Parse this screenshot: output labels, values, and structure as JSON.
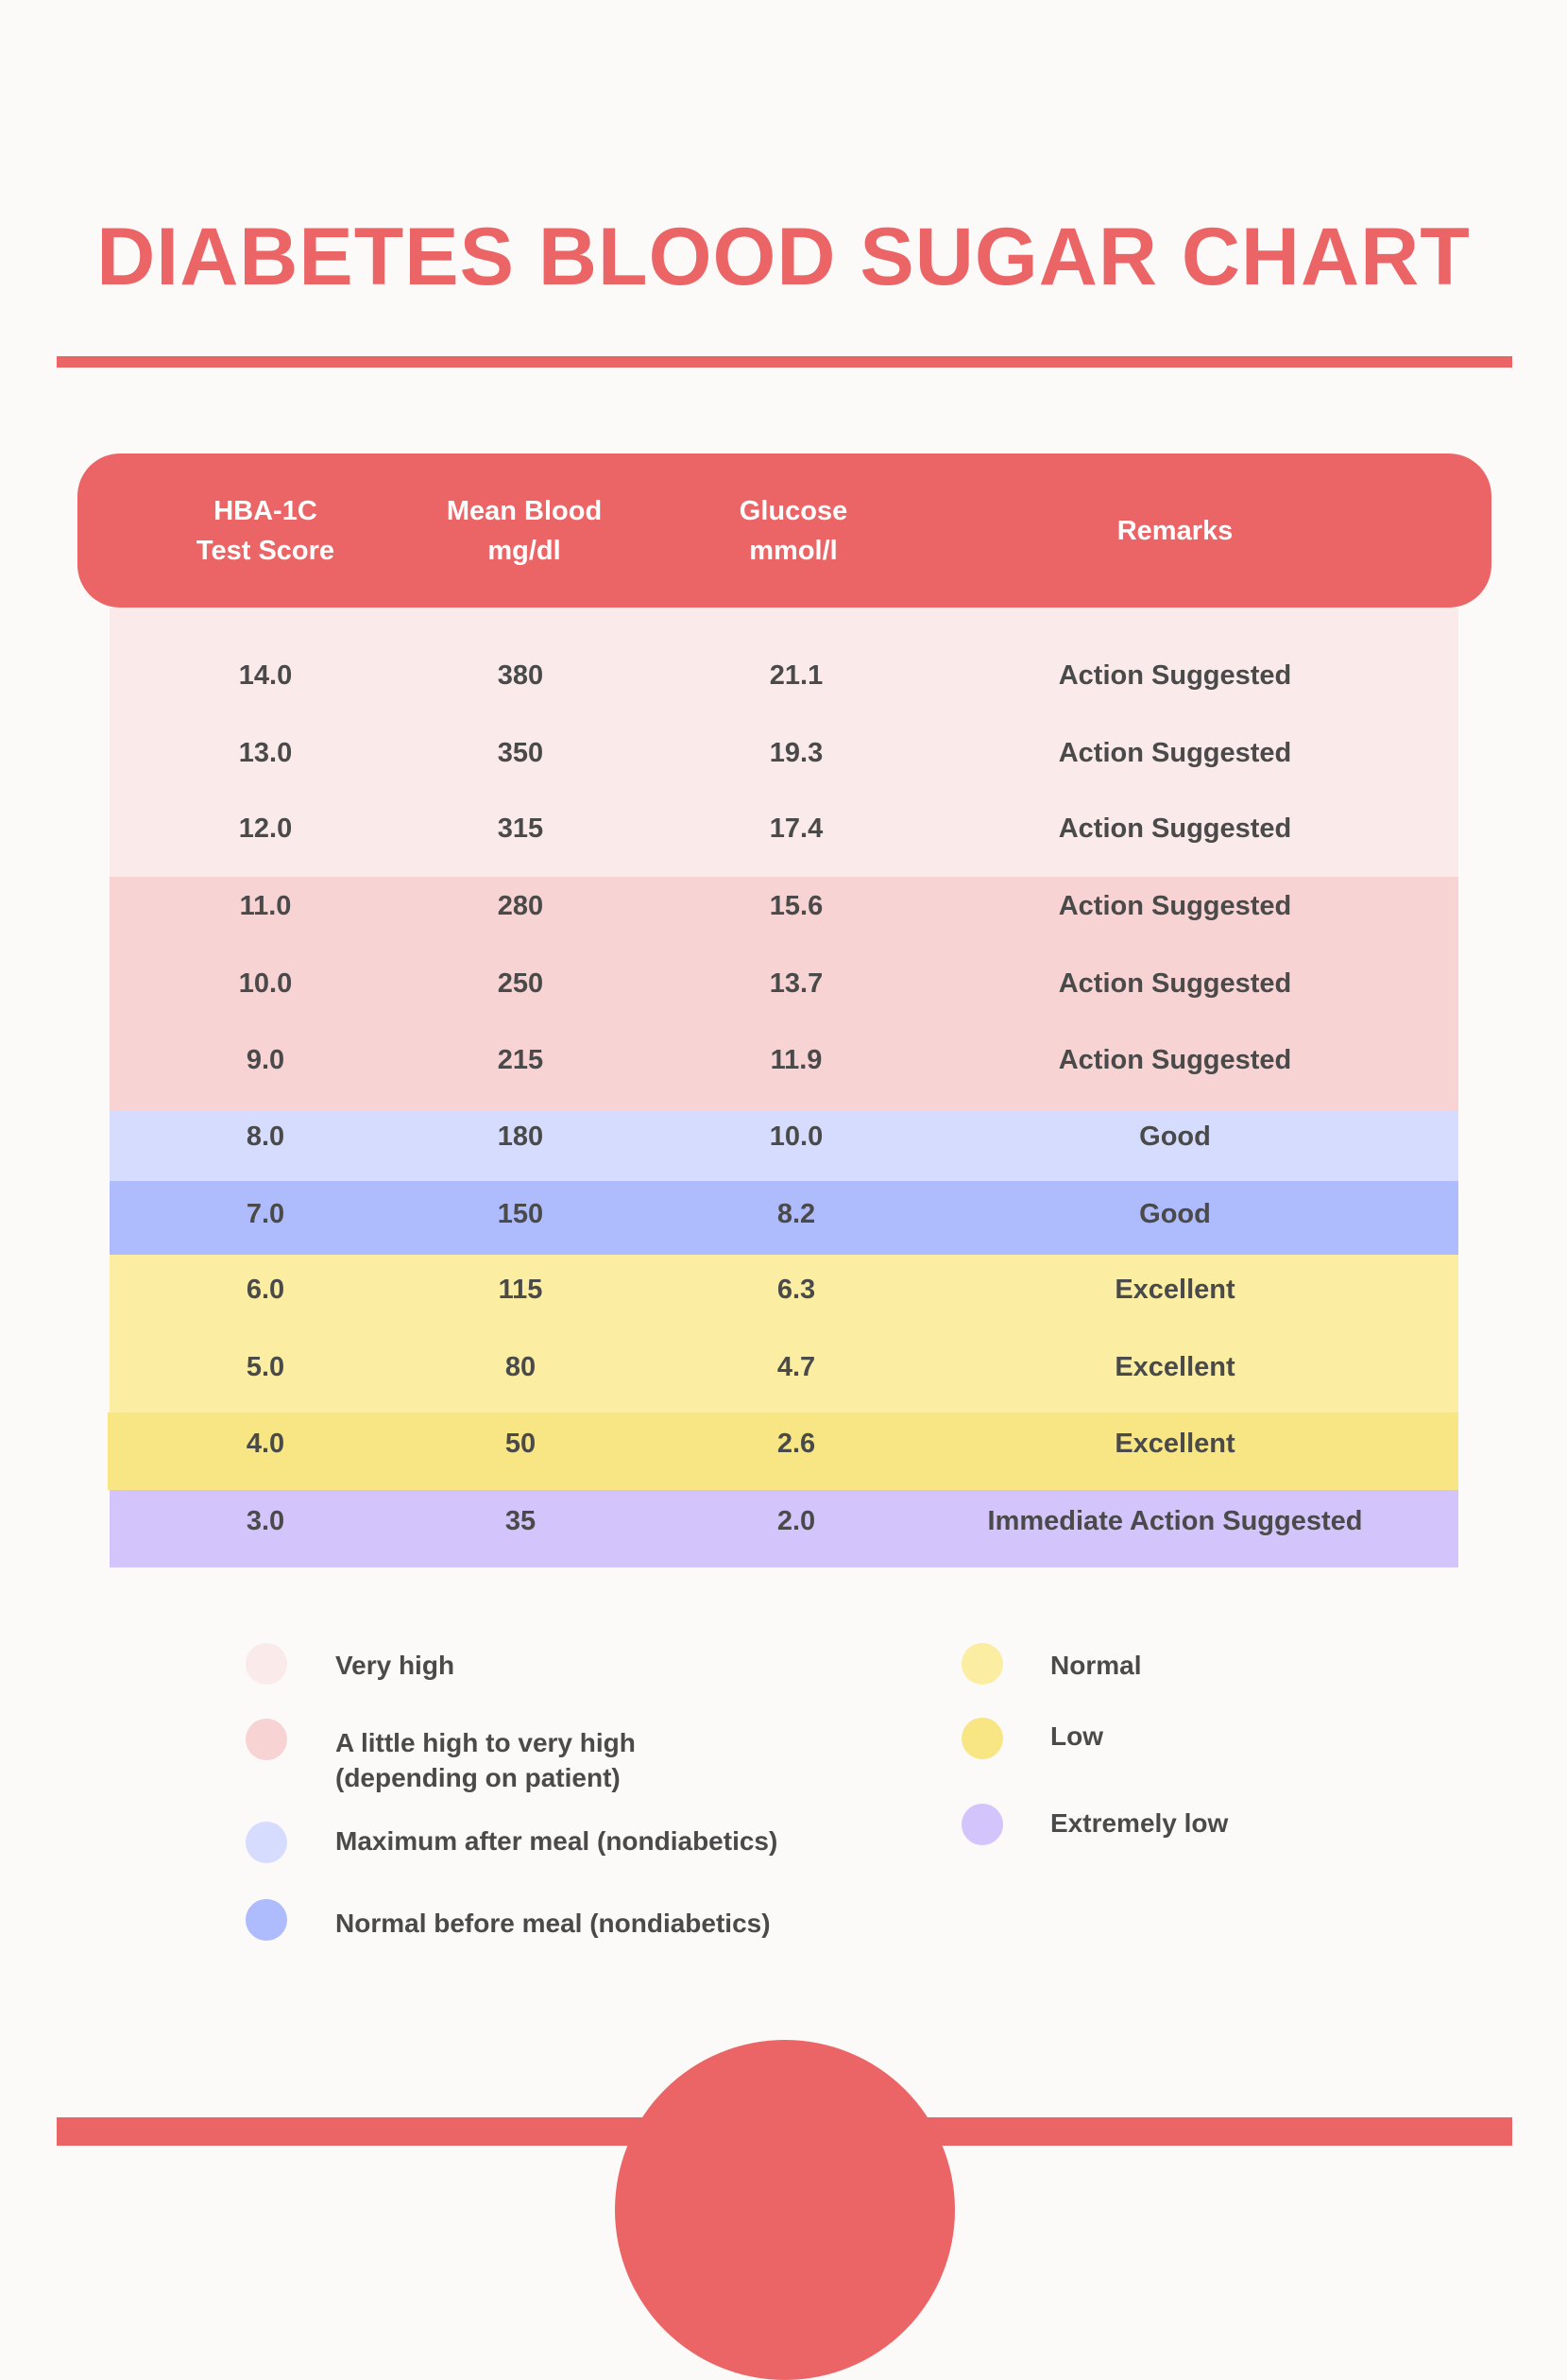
{
  "title": "DIABETES BLOOD SUGAR CHART",
  "colors": {
    "accent": "#EB6566",
    "background": "#FCF9F9",
    "very_high": "#FAEAEA",
    "little_high": "#F8D3D3",
    "max_after_meal": "#D6DCFD",
    "normal_before_meal": "#AEBBFC",
    "normal": "#FBEEA2",
    "low": "#F8E583",
    "extremely_low": "#D3C4FB"
  },
  "table": {
    "headers": [
      {
        "line1": "HBA-1C",
        "line2": "Test Score"
      },
      {
        "line1": "Mean Blood",
        "line2": "mg/dl"
      },
      {
        "line1": "Glucose",
        "line2": "mmol/l"
      },
      {
        "line1": "Remarks",
        "line2": ""
      }
    ],
    "rows": [
      {
        "hba1c": "14.0",
        "mg_dl": "380",
        "mmol_l": "21.1",
        "remarks": "Action Suggested",
        "category": "very_high"
      },
      {
        "hba1c": "13.0",
        "mg_dl": "350",
        "mmol_l": "19.3",
        "remarks": "Action Suggested",
        "category": "very_high"
      },
      {
        "hba1c": "12.0",
        "mg_dl": "315",
        "mmol_l": "17.4",
        "remarks": "Action Suggested",
        "category": "very_high"
      },
      {
        "hba1c": "11.0",
        "mg_dl": "280",
        "mmol_l": "15.6",
        "remarks": "Action Suggested",
        "category": "little_high"
      },
      {
        "hba1c": "10.0",
        "mg_dl": "250",
        "mmol_l": "13.7",
        "remarks": "Action Suggested",
        "category": "little_high"
      },
      {
        "hba1c": "9.0",
        "mg_dl": "215",
        "mmol_l": "11.9",
        "remarks": "Action Suggested",
        "category": "little_high"
      },
      {
        "hba1c": "8.0",
        "mg_dl": "180",
        "mmol_l": "10.0",
        "remarks": "Good",
        "category": "max_after_meal"
      },
      {
        "hba1c": "7.0",
        "mg_dl": "150",
        "mmol_l": "8.2",
        "remarks": "Good",
        "category": "normal_before_meal"
      },
      {
        "hba1c": "6.0",
        "mg_dl": "115",
        "mmol_l": "6.3",
        "remarks": "Excellent",
        "category": "normal"
      },
      {
        "hba1c": "5.0",
        "mg_dl": "80",
        "mmol_l": "4.7",
        "remarks": "Excellent",
        "category": "normal"
      },
      {
        "hba1c": "4.0",
        "mg_dl": "50",
        "mmol_l": "2.6",
        "remarks": "Excellent",
        "category": "low"
      },
      {
        "hba1c": "3.0",
        "mg_dl": "35",
        "mmol_l": "2.0",
        "remarks": "Immediate Action Suggested",
        "category": "extremely_low"
      }
    ]
  },
  "legend": {
    "left": [
      {
        "line1": "Very high",
        "line2": "",
        "color": "#FAEAEA"
      },
      {
        "line1": "A little high to very high",
        "line2": "(depending on patient)",
        "color": "#F8D3D3"
      },
      {
        "line1": "Maximum after meal (nondiabetics)",
        "line2": "",
        "color": "#D6DCFD"
      },
      {
        "line1": "Normal before meal (nondiabetics)",
        "line2": "",
        "color": "#AEBBFC"
      }
    ],
    "right": [
      {
        "line1": "Normal",
        "color": "#FBEEA2"
      },
      {
        "line1": "Low",
        "color": "#F8E583"
      },
      {
        "line1": "Extremely low",
        "color": "#D3C4FB"
      }
    ]
  }
}
